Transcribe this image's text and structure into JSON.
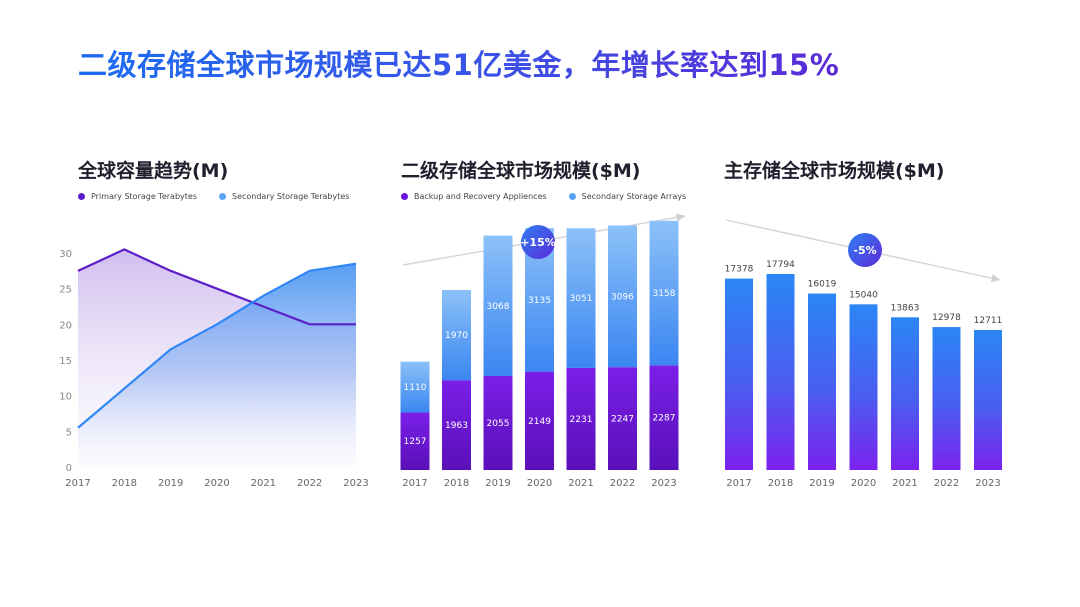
{
  "page": {
    "title": "二级存储全球市场规模已达51亿美金，年增长率达到15%"
  },
  "colors": {
    "primary_purple": "#6a1fd8",
    "secondary_blue": "#5aa2f5",
    "bar_blue": "#2f86f6",
    "bar_purple": "#7a1fe8"
  },
  "chart_data": [
    {
      "type": "area",
      "title": "全球容量趋势(M)",
      "categories": [
        "2017",
        "2018",
        "2019",
        "2020",
        "2021",
        "2022",
        "2023"
      ],
      "series": [
        {
          "name": "Primary Storage Terabytes",
          "color": "#5b1fc8",
          "values": [
            27.5,
            30.5,
            27.5,
            25,
            22.5,
            20,
            20
          ]
        },
        {
          "name": "Secondary Storage Terabytes",
          "color": "#5aa2f5",
          "values": [
            5.5,
            11,
            16.5,
            20,
            24,
            27.5,
            28.5
          ]
        }
      ],
      "y_ticks": [
        "0",
        "5",
        "10",
        "15",
        "20",
        "25",
        "30"
      ],
      "ylim": [
        0,
        30
      ]
    },
    {
      "type": "bar",
      "stacked": true,
      "title": "二级存储全球市场规模($M)",
      "categories": [
        "2017",
        "2018",
        "2019",
        "2020",
        "2021",
        "2022",
        "2023"
      ],
      "series": [
        {
          "name": "Backup and Recovery Appliences",
          "color": "#6a12e0",
          "values": [
            1257,
            1963,
            2055,
            2149,
            2231,
            2247,
            2287
          ]
        },
        {
          "name": "Secondary Storage Arrays",
          "color": "#5aa2f5",
          "values": [
            1110,
            1970,
            3068,
            3135,
            3051,
            3096,
            3158
          ]
        }
      ],
      "badge": "+15%"
    },
    {
      "type": "bar",
      "title": "主存储全球市场规模($M)",
      "categories": [
        "2017",
        "2018",
        "2019",
        "2020",
        "2021",
        "2022",
        "2023"
      ],
      "values": [
        17378,
        17794,
        16019,
        15040,
        13863,
        12978,
        12711
      ],
      "badge": "-5%"
    }
  ]
}
